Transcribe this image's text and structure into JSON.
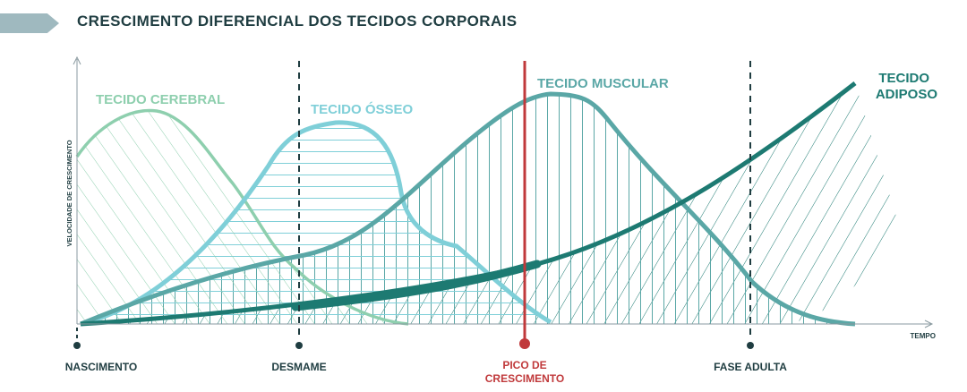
{
  "title": "CRESCIMENTO DIFERENCIAL DOS TECIDOS CORPORAIS",
  "y_axis_label": "VELOCIDADE DE CRESCIMENTO",
  "x_axis_label": "TEMPO",
  "tissues": {
    "cerebral": "TECIDO CEREBRAL",
    "osseo": "TECIDO ÓSSEO",
    "muscular": "TECIDO MUSCULAR",
    "adiposo_line1": "TECIDO",
    "adiposo_line2": "ADIPOSO"
  },
  "milestones": {
    "nascimento": "NASCIMENTO",
    "desmame": "DESMAME",
    "pico_line1": "PICO DE",
    "pico_line2": "CRESCIMENTO",
    "fase_adulta": "FASE ADULTA"
  },
  "colors": {
    "title_bar": "#9fb9bf",
    "title": "#1f3d41",
    "cerebral": "#8ecfae",
    "osseo": "#7fcfd8",
    "muscular": "#5aa7a6",
    "adiposo": "#1d7a72",
    "peak": "#c0393b",
    "axis": "#8a9aa0",
    "dark": "#1f3d41"
  }
}
